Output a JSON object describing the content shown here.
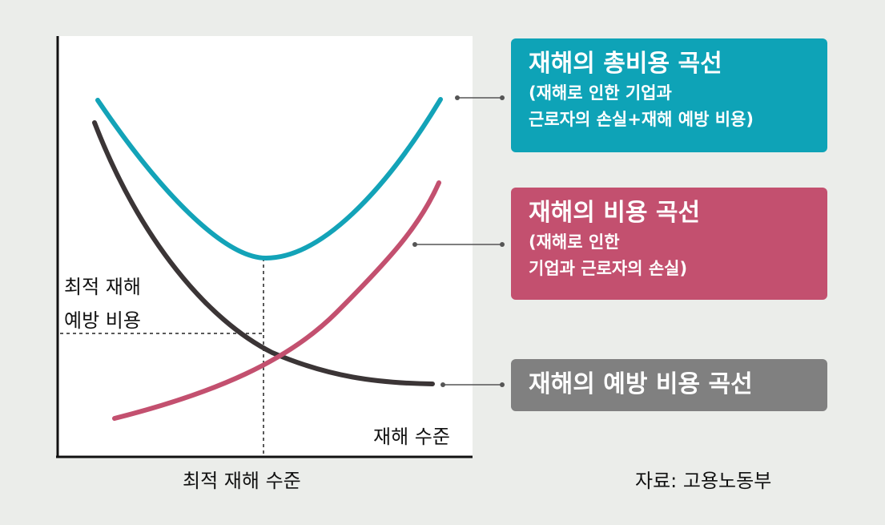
{
  "chart_data": {
    "type": "line",
    "x_label": "재해 수준",
    "optimal_x_label": "최적 재해 수준",
    "optimal_y_label": [
      "최적 재해",
      "예방 비용"
    ],
    "series": [
      {
        "key": "total",
        "color": "#13a3b8",
        "legend_title": "재해의 총비용 곡선",
        "legend_sub": [
          "(재해로 인한 기업과",
          "근로자의 손실+재해 예방 비용)"
        ]
      },
      {
        "key": "damage",
        "color": "#c3506f",
        "legend_title": "재해의 비용 곡선",
        "legend_sub": [
          "(재해로 인한",
          "기업과 근로자의 손실)"
        ]
      },
      {
        "key": "prevention",
        "color": "#3b3536",
        "box_color": "#808080",
        "legend_title": "재해의 예방 비용 곡선",
        "legend_sub": []
      }
    ]
  },
  "source": "자료: 고용노동부",
  "colors": {
    "background": "#ebedea",
    "plot": "#ffffff",
    "total_box": "#0ea3b7",
    "damage_box": "#c3506f",
    "prevention_box": "#808080"
  }
}
